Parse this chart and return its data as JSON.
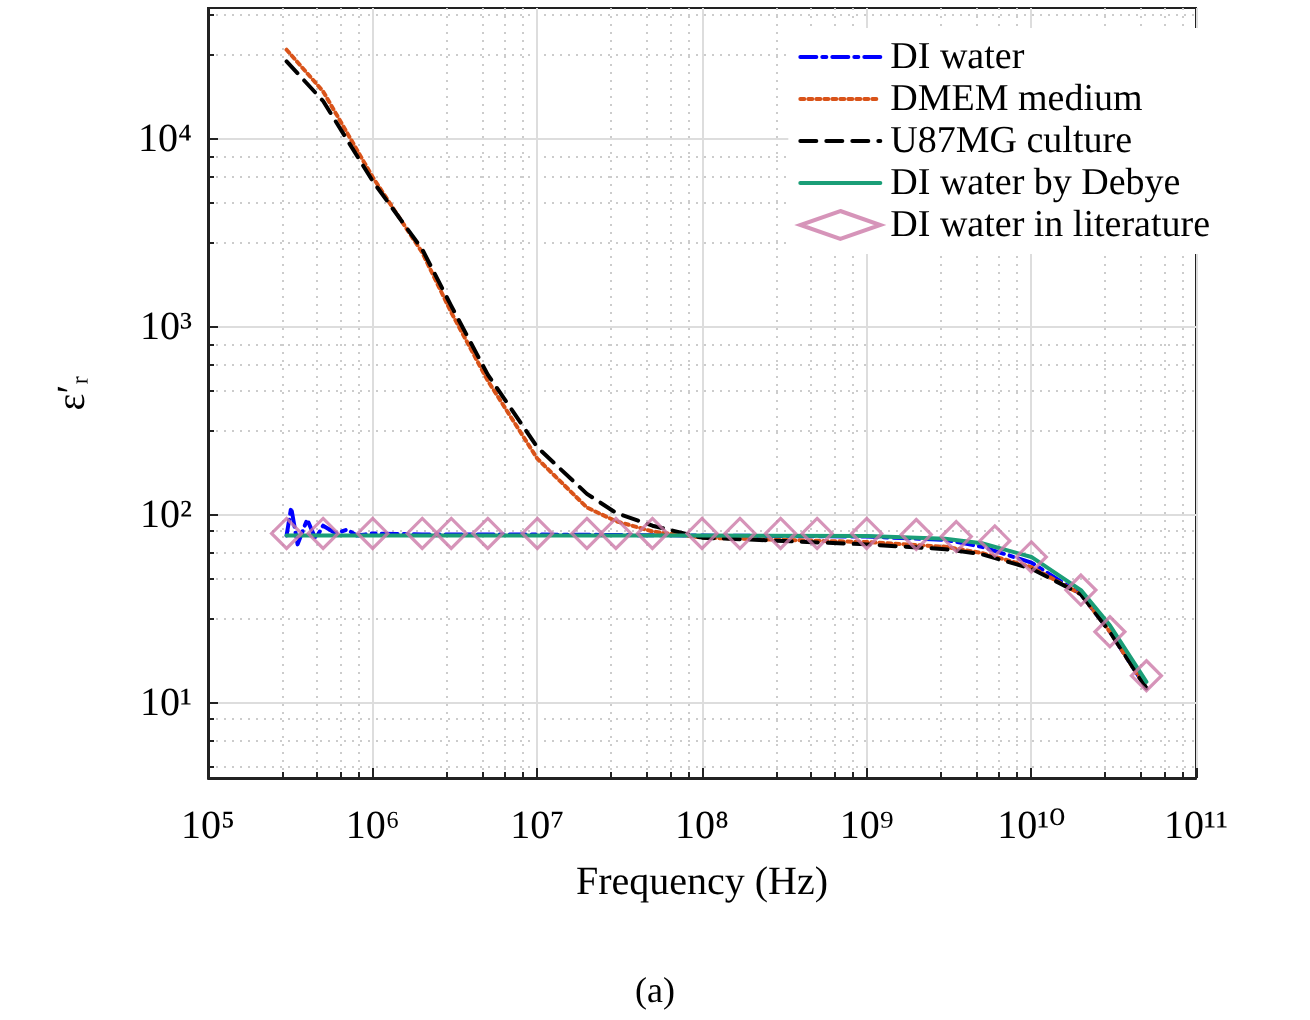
{
  "chart_data": {
    "type": "line",
    "xlabel": "Frequency (Hz)",
    "ylabel": "ε′ᵣ",
    "annotations": [
      "(a)"
    ],
    "log": "xy",
    "grid": true,
    "legend": "top right",
    "xlim": [
      100000,
      100000000000
    ],
    "ylim": [
      4,
      50000
    ],
    "xticks": [
      {
        "value": 100000,
        "label": "10⁵"
      },
      {
        "value": 1000000,
        "label": "10⁶"
      },
      {
        "value": 10000000,
        "label": "10⁷"
      },
      {
        "value": 100000000,
        "label": "10⁸"
      },
      {
        "value": 1000000000,
        "label": "10⁹"
      },
      {
        "value": 10000000000,
        "label": "10¹⁰"
      },
      {
        "value": 100000000000,
        "label": "10¹¹"
      }
    ],
    "yticks": [
      {
        "value": 10,
        "label": "10¹"
      },
      {
        "value": 100,
        "label": "10²"
      },
      {
        "value": 1000,
        "label": "10³"
      },
      {
        "value": 10000,
        "label": "10⁴"
      }
    ],
    "series": [
      {
        "name": "DI water",
        "line_style": "dashdot",
        "marker": "none",
        "color": "#0000ff",
        "x": [
          300000,
          320000,
          350000,
          400000,
          450000,
          500000,
          600000,
          700000,
          800000,
          1000000,
          2000000,
          5000000,
          10000000,
          100000000,
          1000000000,
          3000000000,
          5000000000,
          10000000000,
          20000000000,
          30000000000,
          50000000000
        ],
        "values": [
          78,
          110,
          70,
          95,
          75,
          88,
          80,
          84,
          78,
          80,
          79,
          79,
          79,
          78,
          77,
          74,
          68,
          56,
          38,
          24,
          12
        ]
      },
      {
        "name": "DMEM medium",
        "line_style": "dotted",
        "marker": "none",
        "color": "#d95319",
        "x": [
          300000,
          500000,
          1000000,
          2000000,
          3000000,
          5000000,
          10000000,
          20000000,
          30000000,
          50000000,
          100000000,
          1000000000,
          3000000000,
          5000000000,
          10000000000,
          20000000000,
          30000000000,
          50000000000
        ],
        "values": [
          30000,
          18000,
          6300,
          2500,
          1200,
          520,
          200,
          110,
          93,
          82,
          76,
          72,
          68,
          63,
          53,
          38,
          24,
          12
        ]
      },
      {
        "name": "U87MG culture",
        "line_style": "dashed",
        "marker": "none",
        "color": "#000000",
        "x": [
          300000,
          500000,
          1000000,
          2000000,
          3000000,
          5000000,
          10000000,
          20000000,
          30000000,
          50000000,
          100000000,
          1000000000,
          3000000000,
          5000000000,
          10000000000,
          20000000000,
          30000000000,
          50000000000
        ],
        "values": [
          26000,
          16000,
          6000,
          2600,
          1300,
          560,
          230,
          130,
          103,
          88,
          76,
          70,
          66,
          62,
          52,
          38,
          24,
          12
        ]
      },
      {
        "name": "DI water by Debye",
        "line_style": "solid",
        "marker": "none",
        "color": "#1a9e77",
        "x": [
          300000,
          10000000,
          100000000,
          1000000000,
          3000000000,
          5000000000,
          10000000000,
          20000000000,
          30000000000,
          50000000000
        ],
        "values": [
          78,
          78,
          78,
          77.5,
          75,
          71,
          60,
          40,
          26,
          13
        ]
      },
      {
        "name": "DI water in literature",
        "type": "scatter",
        "marker": "diamond",
        "color": "#cc79a7",
        "x": [
          300000,
          500000,
          1000000,
          2000000,
          3000000,
          5000000,
          10000000,
          20000000,
          30000000,
          50000000,
          100000000,
          170000000,
          300000000,
          500000000,
          1000000000,
          2000000000,
          3500000000,
          6000000000,
          10000000000,
          20000000000,
          30000000000,
          50000000000
        ],
        "values": [
          80,
          80,
          80,
          80,
          80,
          80,
          80,
          80,
          80,
          80,
          80,
          80,
          80,
          80,
          80,
          79,
          77,
          73,
          60,
          40,
          24,
          14
        ]
      }
    ]
  }
}
